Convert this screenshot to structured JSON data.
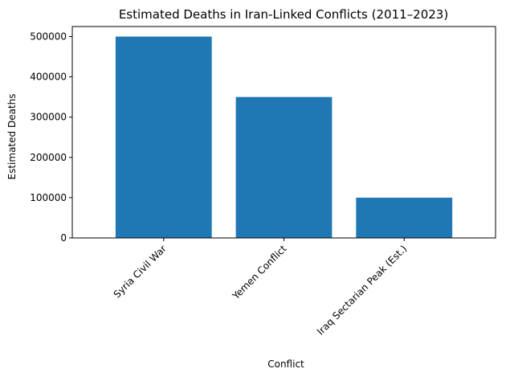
{
  "chart_data": {
    "type": "bar",
    "title": "Estimated Deaths in Iran-Linked Conflicts (2011–2023)",
    "xlabel": "Conflict",
    "ylabel": "Estimated Deaths",
    "categories": [
      "Syria Civil War",
      "Yemen Conflict",
      "Iraq Sectarian Peak (Est.)"
    ],
    "values": [
      500000,
      350000,
      100000
    ],
    "ylim": [
      0,
      525000
    ],
    "yticks": [
      0,
      100000,
      200000,
      300000,
      400000,
      500000
    ],
    "ytick_labels": [
      "0",
      "100000",
      "200000",
      "300000",
      "400000",
      "500000"
    ],
    "xtick_rotation_deg": 45,
    "bar_color": "#1f77b4",
    "grid": false,
    "legend": "none"
  }
}
